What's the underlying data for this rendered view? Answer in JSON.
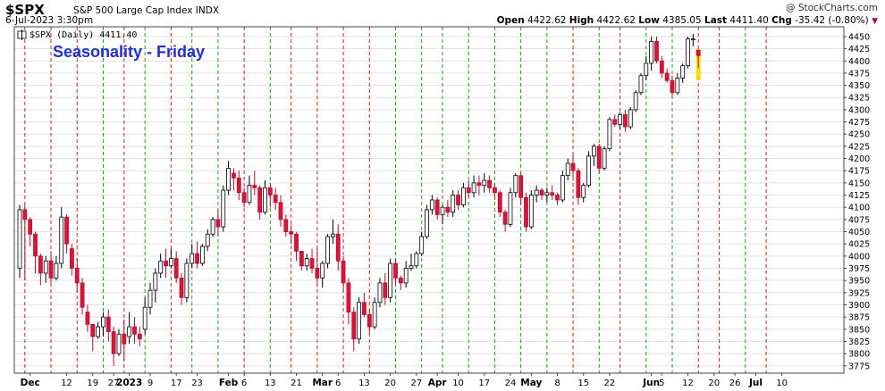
{
  "header": {
    "symbol": "$SPX",
    "name": "S&P 500 Large Cap Index INDX",
    "date": "6-Jul-2023 3:30pm",
    "watermark": "@ StockCharts.com",
    "open_label": "Open",
    "open": "4422.62",
    "high_label": "High",
    "high": "4422.62",
    "low_label": "Low",
    "low": "4385.05",
    "last_label": "Last",
    "last": "4411.40",
    "chg_label": "Chg",
    "chg": "-35.42 (-0.80%)"
  },
  "chart_data": {
    "type": "candlestick",
    "legend_text": "$SPX (Daily) 4411.40",
    "title": "Seasonality - Friday",
    "ylim": [
      3760,
      4470
    ],
    "y_ticks": [
      3775,
      3800,
      3825,
      3850,
      3875,
      3900,
      3925,
      3950,
      3975,
      4000,
      4025,
      4050,
      4075,
      4100,
      4125,
      4150,
      4175,
      4200,
      4225,
      4250,
      4275,
      4300,
      4325,
      4350,
      4375,
      4400,
      4425,
      4450
    ],
    "x_tick_labels": [
      {
        "i": 2,
        "label": "Dec"
      },
      {
        "i": 9,
        "label": "12"
      },
      {
        "i": 14,
        "label": "19"
      },
      {
        "i": 18,
        "label": "27"
      },
      {
        "i": 21,
        "label": "2023"
      },
      {
        "i": 25,
        "label": "9"
      },
      {
        "i": 30,
        "label": "17"
      },
      {
        "i": 34,
        "label": "23"
      },
      {
        "i": 40,
        "label": "Feb"
      },
      {
        "i": 43,
        "label": "6"
      },
      {
        "i": 48,
        "label": "13"
      },
      {
        "i": 53,
        "label": "21"
      },
      {
        "i": 58,
        "label": "Mar"
      },
      {
        "i": 61,
        "label": "6"
      },
      {
        "i": 66,
        "label": "13"
      },
      {
        "i": 71,
        "label": "20"
      },
      {
        "i": 76,
        "label": "27"
      },
      {
        "i": 80,
        "label": "Apr"
      },
      {
        "i": 84,
        "label": "10"
      },
      {
        "i": 89,
        "label": "17"
      },
      {
        "i": 94,
        "label": "24"
      },
      {
        "i": 98,
        "label": "May"
      },
      {
        "i": 103,
        "label": "8"
      },
      {
        "i": 108,
        "label": "15"
      },
      {
        "i": 113,
        "label": "22"
      },
      {
        "i": 121,
        "label": "Jun"
      },
      {
        "i": 123,
        "label": "5"
      },
      {
        "i": 128,
        "label": "12"
      },
      {
        "i": 133,
        "label": "20"
      },
      {
        "i": 137,
        "label": "26"
      },
      {
        "i": 141,
        "label": "Jul"
      },
      {
        "i": 146,
        "label": "10"
      }
    ],
    "friday_markers": [
      {
        "i": 1,
        "color": "red"
      },
      {
        "i": 6,
        "color": "red"
      },
      {
        "i": 11,
        "color": "red"
      },
      {
        "i": 16,
        "color": "green"
      },
      {
        "i": 20,
        "color": "red"
      },
      {
        "i": 24,
        "color": "green"
      },
      {
        "i": 29,
        "color": "red"
      },
      {
        "i": 33,
        "color": "green"
      },
      {
        "i": 38,
        "color": "green"
      },
      {
        "i": 43,
        "color": "red"
      },
      {
        "i": 48,
        "color": "green"
      },
      {
        "i": 52,
        "color": "red"
      },
      {
        "i": 57,
        "color": "red"
      },
      {
        "i": 62,
        "color": "red"
      },
      {
        "i": 67,
        "color": "red"
      },
      {
        "i": 72,
        "color": "green"
      },
      {
        "i": 77,
        "color": "green"
      },
      {
        "i": 81,
        "color": "green"
      },
      {
        "i": 86,
        "color": "green"
      },
      {
        "i": 91,
        "color": "green"
      },
      {
        "i": 96,
        "color": "green"
      },
      {
        "i": 101,
        "color": "green"
      },
      {
        "i": 106,
        "color": "red"
      },
      {
        "i": 111,
        "color": "green"
      },
      {
        "i": 115,
        "color": "red"
      },
      {
        "i": 120,
        "color": "green"
      },
      {
        "i": 125,
        "color": "green"
      },
      {
        "i": 130,
        "color": "red"
      },
      {
        "i": 134,
        "color": "red"
      },
      {
        "i": 139,
        "color": "green"
      },
      {
        "i": 143,
        "color": "red"
      }
    ],
    "candles": [
      [
        3975,
        4105,
        3955,
        4095
      ],
      [
        4095,
        4105,
        3950,
        4075
      ],
      [
        4075,
        4080,
        4020,
        4045
      ],
      [
        4045,
        4050,
        3965,
        4000
      ],
      [
        4000,
        4005,
        3940,
        3965
      ],
      [
        3965,
        4000,
        3945,
        3990
      ],
      [
        3990,
        4010,
        3945,
        3955
      ],
      [
        3955,
        4000,
        3950,
        3985
      ],
      [
        3985,
        4100,
        3975,
        4080
      ],
      [
        4080,
        4085,
        4005,
        4025
      ],
      [
        4015,
        4025,
        3960,
        3975
      ],
      [
        3975,
        3995,
        3925,
        3945
      ],
      [
        3945,
        3955,
        3880,
        3895
      ],
      [
        3885,
        3900,
        3845,
        3860
      ],
      [
        3860,
        3860,
        3805,
        3835
      ],
      [
        3835,
        3865,
        3830,
        3855
      ],
      [
        3855,
        3885,
        3835,
        3875
      ],
      [
        3875,
        3890,
        3825,
        3845
      ],
      [
        3845,
        3855,
        3775,
        3800
      ],
      [
        3800,
        3850,
        3795,
        3840
      ],
      [
        3840,
        3870,
        3785,
        3820
      ],
      [
        3835,
        3885,
        3820,
        3855
      ],
      [
        3855,
        3875,
        3820,
        3840
      ],
      [
        3840,
        3855,
        3815,
        3830
      ],
      [
        3850,
        3915,
        3840,
        3895
      ],
      [
        3895,
        3945,
        3880,
        3930
      ],
      [
        3930,
        3975,
        3905,
        3965
      ],
      [
        3965,
        4005,
        3955,
        3990
      ],
      [
        3990,
        4015,
        3955,
        3980
      ],
      [
        3980,
        4015,
        3975,
        3995
      ],
      [
        3995,
        4010,
        3945,
        3955
      ],
      [
        3955,
        3965,
        3900,
        3915
      ],
      [
        3915,
        3995,
        3905,
        3985
      ],
      [
        3985,
        4025,
        3975,
        4005
      ],
      [
        4005,
        4030,
        3975,
        3985
      ],
      [
        3985,
        4025,
        3980,
        4020
      ],
      [
        4020,
        4055,
        4010,
        4045
      ],
      [
        4045,
        4080,
        4040,
        4075
      ],
      [
        4075,
        4095,
        4040,
        4060
      ],
      [
        4060,
        4145,
        4050,
        4135
      ],
      [
        4135,
        4195,
        4125,
        4180
      ],
      [
        4170,
        4180,
        4135,
        4160
      ],
      [
        4160,
        4175,
        4115,
        4130
      ],
      [
        4130,
        4140,
        4100,
        4110
      ],
      [
        4110,
        4165,
        4105,
        4145
      ],
      [
        4145,
        4175,
        4125,
        4140
      ],
      [
        4140,
        4145,
        4075,
        4090
      ],
      [
        4090,
        4155,
        4085,
        4140
      ],
      [
        4140,
        4150,
        4100,
        4125
      ],
      [
        4125,
        4140,
        4095,
        4110
      ],
      [
        4110,
        4125,
        4060,
        4075
      ],
      [
        4075,
        4085,
        4040,
        4050
      ],
      [
        4050,
        4065,
        4025,
        4045
      ],
      [
        4045,
        4050,
        3990,
        4010
      ],
      [
        4010,
        4010,
        3970,
        3980
      ],
      [
        3980,
        4005,
        3970,
        3995
      ],
      [
        3995,
        4015,
        3965,
        3975
      ],
      [
        3975,
        4015,
        3940,
        3955
      ],
      [
        3955,
        3990,
        3935,
        3985
      ],
      [
        3985,
        4045,
        3975,
        4040
      ],
      [
        4040,
        4075,
        4025,
        4045
      ],
      [
        4045,
        4065,
        3970,
        3990
      ],
      [
        3990,
        4000,
        3925,
        3945
      ],
      [
        3945,
        3955,
        3860,
        3885
      ],
      [
        3885,
        3895,
        3805,
        3830
      ],
      [
        3830,
        3915,
        3820,
        3905
      ],
      [
        3905,
        3925,
        3875,
        3880
      ],
      [
        3880,
        3890,
        3840,
        3855
      ],
      [
        3855,
        3915,
        3850,
        3905
      ],
      [
        3905,
        3955,
        3895,
        3945
      ],
      [
        3945,
        3965,
        3900,
        3915
      ],
      [
        3915,
        3995,
        3905,
        3985
      ],
      [
        3985,
        3995,
        3940,
        3955
      ],
      [
        3955,
        3960,
        3930,
        3945
      ],
      [
        3945,
        3990,
        3935,
        3975
      ],
      [
        3975,
        4005,
        3970,
        3980
      ],
      [
        3980,
        4010,
        3975,
        4005
      ],
      [
        4005,
        4050,
        4000,
        4040
      ],
      [
        4040,
        4105,
        4035,
        4095
      ],
      [
        4095,
        4125,
        4085,
        4115
      ],
      [
        4115,
        4120,
        4075,
        4085
      ],
      [
        4085,
        4105,
        4065,
        4100
      ],
      [
        4100,
        4115,
        4080,
        4090
      ],
      [
        4090,
        4135,
        4080,
        4125
      ],
      [
        4125,
        4135,
        4095,
        4105
      ],
      [
        4105,
        4150,
        4100,
        4140
      ],
      [
        4140,
        4155,
        4120,
        4130
      ],
      [
        4130,
        4165,
        4120,
        4150
      ],
      [
        4150,
        4165,
        4125,
        4145
      ],
      [
        4145,
        4170,
        4130,
        4155
      ],
      [
        4155,
        4165,
        4130,
        4140
      ],
      [
        4140,
        4150,
        4115,
        4130
      ],
      [
        4130,
        4135,
        4080,
        4090
      ],
      [
        4090,
        4095,
        4050,
        4065
      ],
      [
        4065,
        4140,
        4060,
        4130
      ],
      [
        4130,
        4170,
        4120,
        4165
      ],
      [
        4165,
        4170,
        4105,
        4120
      ],
      [
        4120,
        4130,
        4050,
        4060
      ],
      [
        4060,
        4135,
        4055,
        4125
      ],
      [
        4125,
        4145,
        4110,
        4135
      ],
      [
        4135,
        4140,
        4115,
        4125
      ],
      [
        4125,
        4140,
        4110,
        4130
      ],
      [
        4130,
        4145,
        4115,
        4125
      ],
      [
        4125,
        4130,
        4105,
        4115
      ],
      [
        4115,
        4175,
        4110,
        4165
      ],
      [
        4165,
        4200,
        4155,
        4190
      ],
      [
        4190,
        4210,
        4160,
        4175
      ],
      [
        4175,
        4180,
        4105,
        4120
      ],
      [
        4120,
        4150,
        4110,
        4145
      ],
      [
        4145,
        4215,
        4140,
        4205
      ],
      [
        4205,
        4230,
        4185,
        4225
      ],
      [
        4225,
        4230,
        4170,
        4180
      ],
      [
        4180,
        4225,
        4175,
        4220
      ],
      [
        4220,
        4285,
        4215,
        4280
      ],
      [
        4280,
        4290,
        4265,
        4270
      ],
      [
        4270,
        4295,
        4260,
        4290
      ],
      [
        4290,
        4300,
        4255,
        4265
      ],
      [
        4265,
        4305,
        4260,
        4300
      ],
      [
        4300,
        4340,
        4295,
        4335
      ],
      [
        4335,
        4375,
        4330,
        4370
      ],
      [
        4370,
        4410,
        4360,
        4395
      ],
      [
        4395,
        4450,
        4380,
        4440
      ],
      [
        4440,
        4450,
        4395,
        4400
      ],
      [
        4400,
        4410,
        4365,
        4375
      ],
      [
        4375,
        4385,
        4355,
        4360
      ],
      [
        4360,
        4370,
        4325,
        4335
      ],
      [
        4335,
        4375,
        4330,
        4365
      ],
      [
        4365,
        4395,
        4355,
        4390
      ],
      [
        4390,
        4450,
        4385,
        4445
      ],
      [
        4445,
        4455,
        4430,
        4445
      ],
      [
        4422,
        4423,
        4385,
        4411
      ]
    ]
  }
}
